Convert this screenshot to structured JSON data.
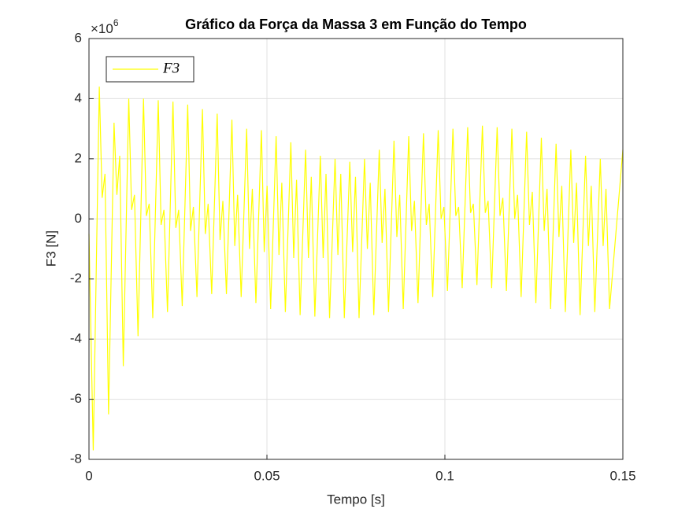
{
  "chart_data": {
    "type": "line",
    "title": "Gráfico da Força da Massa 3 em Função do Tempo",
    "xlabel": "Tempo [s]",
    "ylabel": "F3 [N]",
    "y_scale": {
      "base": "×10",
      "exponent": 6
    },
    "xlim": [
      0,
      0.15
    ],
    "ylim": [
      -8,
      6
    ],
    "xticks": [
      0,
      0.05,
      0.1,
      0.15
    ],
    "yticks": [
      -8,
      -6,
      -4,
      -2,
      0,
      2,
      4,
      6
    ],
    "grid": true,
    "legend": "upper left",
    "x": [
      0,
      0.0012,
      0.0029,
      0.0037,
      0.0045,
      0.0055,
      0.00704,
      0.00784,
      0.00864,
      0.00964,
      0.01118,
      0.01198,
      0.01278,
      0.01378,
      0.01532,
      0.01612,
      0.01692,
      0.01792,
      0.01946,
      0.02026,
      0.02106,
      0.02206,
      0.0236,
      0.0244,
      0.0252,
      0.0262,
      0.02774,
      0.02854,
      0.02934,
      0.03034,
      0.03188,
      0.03268,
      0.03348,
      0.03448,
      0.03602,
      0.03682,
      0.03762,
      0.03862,
      0.04016,
      0.04096,
      0.04176,
      0.04276,
      0.0443,
      0.0451,
      0.0459,
      0.0469,
      0.04844,
      0.04924,
      0.05004,
      0.05104,
      0.05258,
      0.05338,
      0.05418,
      0.05518,
      0.05672,
      0.05752,
      0.05832,
      0.05932,
      0.06086,
      0.06166,
      0.06246,
      0.06346,
      0.065,
      0.0658,
      0.0666,
      0.0676,
      0.06914,
      0.06994,
      0.07074,
      0.07174,
      0.07328,
      0.07408,
      0.07488,
      0.07588,
      0.07742,
      0.07822,
      0.07902,
      0.08002,
      0.08156,
      0.08236,
      0.08316,
      0.08416,
      0.0857,
      0.0865,
      0.0873,
      0.0883,
      0.08984,
      0.09064,
      0.09144,
      0.09244,
      0.09398,
      0.09478,
      0.09558,
      0.09658,
      0.09812,
      0.09892,
      0.09972,
      0.10072,
      0.10226,
      0.10306,
      0.10386,
      0.10486,
      0.1064,
      0.1072,
      0.108,
      0.109,
      0.11054,
      0.11134,
      0.11214,
      0.11314,
      0.11468,
      0.11548,
      0.11628,
      0.11728,
      0.11882,
      0.11962,
      0.12042,
      0.12142,
      0.12296,
      0.12376,
      0.12456,
      0.12556,
      0.1271,
      0.1279,
      0.1287,
      0.1297,
      0.13124,
      0.13204,
      0.13284,
      0.13384,
      0.13538,
      0.13618,
      0.13698,
      0.13798,
      0.13952,
      0.14032,
      0.14112,
      0.14212,
      0.14366,
      0.14446,
      0.14526,
      0.14626,
      0.15
    ],
    "series": [
      {
        "name": "F3",
        "color": "#ffff00",
        "values": [
          -0.5,
          -7.7,
          4.4,
          0.7,
          1.5,
          -6.5,
          3.2,
          0.8,
          2.1,
          -4.9,
          4.0,
          0.3,
          0.8,
          -3.9,
          4.0,
          0.1,
          0.5,
          -3.3,
          3.95,
          -0.2,
          0.3,
          -3.1,
          3.9,
          -0.3,
          0.3,
          -2.9,
          3.8,
          -0.4,
          0.4,
          -2.6,
          3.65,
          -0.5,
          0.5,
          -2.5,
          3.5,
          -0.7,
          0.6,
          -2.5,
          3.3,
          -0.9,
          0.8,
          -2.6,
          3.0,
          -1.0,
          1.0,
          -2.8,
          2.95,
          -1.1,
          1.1,
          -3.0,
          2.75,
          -1.2,
          1.2,
          -3.1,
          2.55,
          -1.3,
          1.3,
          -3.2,
          2.3,
          -1.3,
          1.4,
          -3.25,
          2.1,
          -1.3,
          1.5,
          -3.3,
          2.0,
          -1.2,
          1.5,
          -3.3,
          1.9,
          -1.1,
          1.4,
          -3.3,
          2.0,
          -1.0,
          1.2,
          -3.2,
          2.3,
          -0.8,
          1.0,
          -3.1,
          2.6,
          -0.6,
          0.8,
          -3.0,
          2.75,
          -0.4,
          0.6,
          -2.8,
          2.85,
          -0.2,
          0.5,
          -2.6,
          2.95,
          0.0,
          0.4,
          -2.4,
          3.0,
          0.1,
          0.4,
          -2.3,
          3.05,
          0.2,
          0.5,
          -2.2,
          3.1,
          0.2,
          0.6,
          -2.3,
          3.05,
          0.1,
          0.7,
          -2.4,
          3.0,
          0.0,
          0.8,
          -2.6,
          2.9,
          -0.2,
          0.9,
          -2.8,
          2.7,
          -0.4,
          1.0,
          -3.0,
          2.5,
          -0.6,
          1.1,
          -3.1,
          2.3,
          -0.8,
          1.2,
          -3.2,
          2.1,
          -0.9,
          1.1,
          -3.1,
          2.0,
          -0.9,
          1.0,
          -3.0,
          2.3
        ]
      }
    ]
  }
}
